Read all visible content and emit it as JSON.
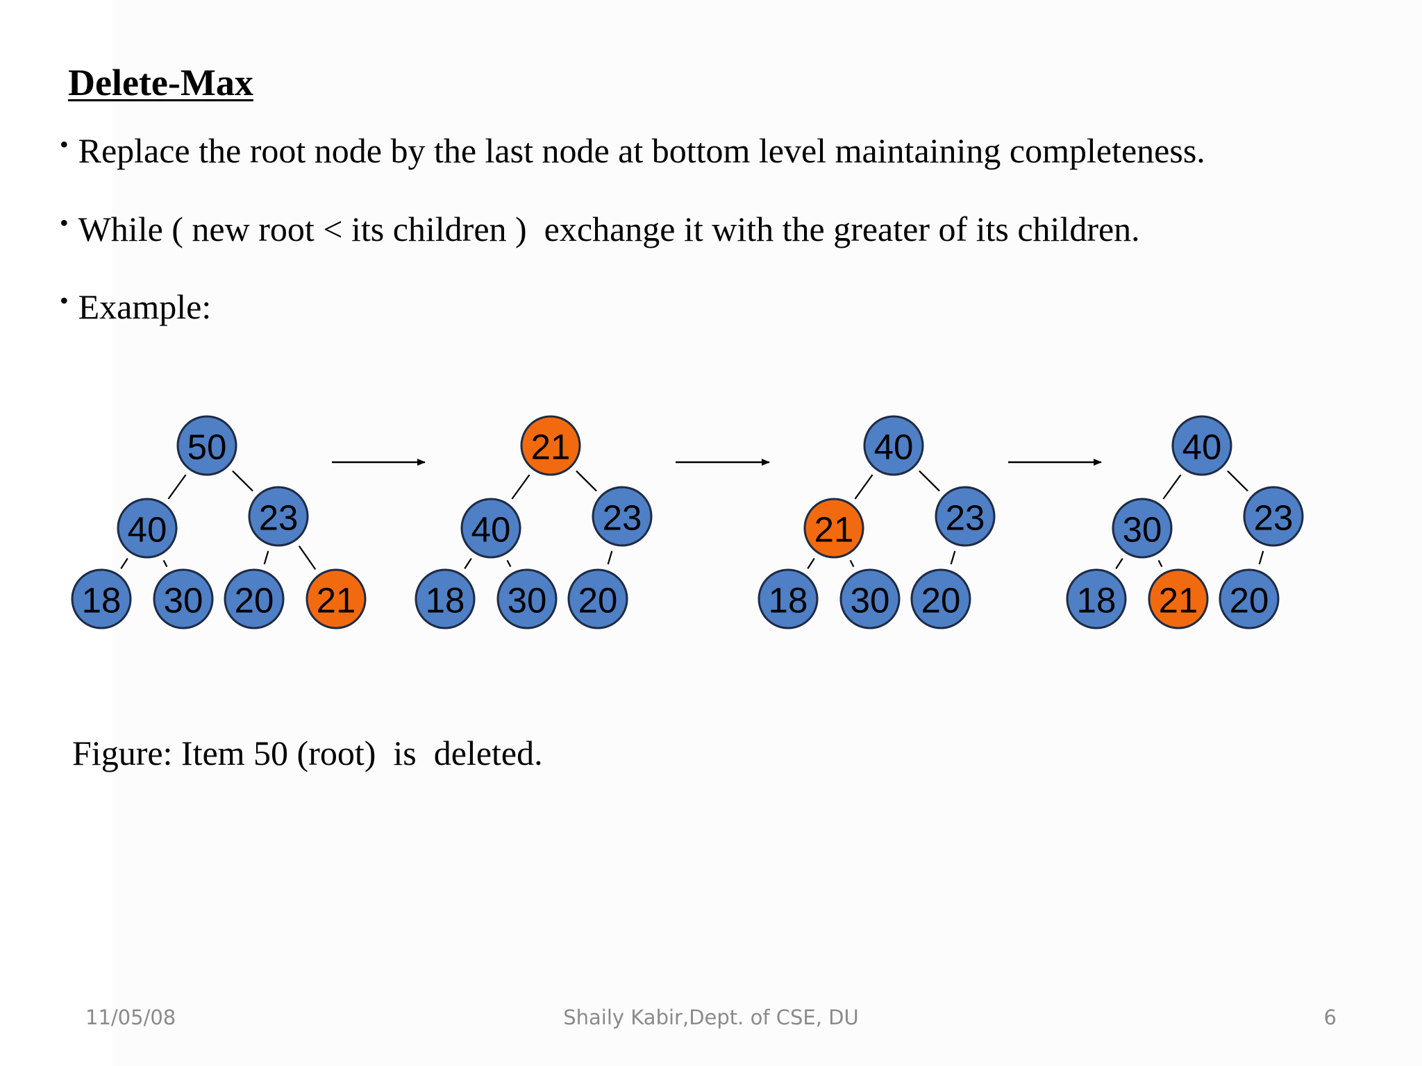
{
  "slide": {
    "title": "Delete-Max",
    "bullets": [
      "Replace the root node by the last node at bottom level maintaining completeness.",
      "While ( new root < its children )  exchange it with the greater of its children.",
      "Example:"
    ],
    "caption": "Figure: Item 50 (root)  is  deleted.",
    "footer": {
      "date": "11/05/08",
      "author": "Shaily Kabir,Dept. of CSE, DU",
      "page": "6"
    }
  },
  "colors": {
    "node_normal": "#4f7fc5",
    "node_highlight": "#f26a0f"
  },
  "trees": [
    {
      "root": "50",
      "left": "40",
      "right": "23",
      "left_left": "18",
      "left_right": "30",
      "right_left": "20",
      "right_right": "21",
      "highlight": [
        "right_right"
      ]
    },
    {
      "root": "21",
      "left": "40",
      "right": "23",
      "left_left": "18",
      "left_right": "30",
      "right_left": "20",
      "highlight": [
        "root"
      ]
    },
    {
      "root": "40",
      "left": "21",
      "right": "23",
      "left_left": "18",
      "left_right": "30",
      "right_left": "20",
      "highlight": [
        "left"
      ]
    },
    {
      "root": "40",
      "left": "30",
      "right": "23",
      "left_left": "18",
      "left_right": "21",
      "right_left": "20",
      "highlight": [
        "left_right"
      ]
    }
  ]
}
